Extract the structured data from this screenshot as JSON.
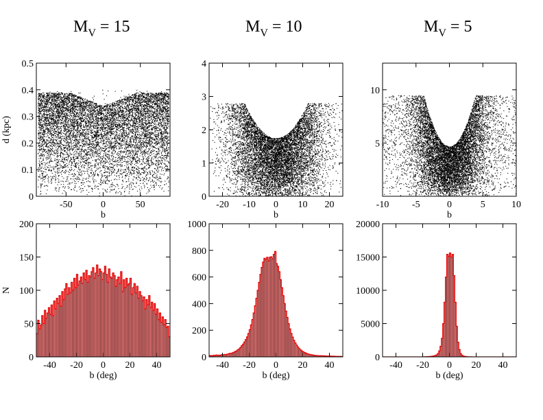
{
  "figure": {
    "panel_titles": [
      {
        "main": "M",
        "sub": "V",
        "rest": " = 15"
      },
      {
        "main": "M",
        "sub": "V",
        "rest": " = 10"
      },
      {
        "main": "M",
        "sub": "V",
        "rest": " = 5"
      }
    ],
    "colors": {
      "hist_fill": "#ff8080",
      "hist_stroke": "#e00000",
      "points": "#000000"
    }
  },
  "chart_data": [
    {
      "type": "scatter",
      "panel": "top-left",
      "xlabel": "b",
      "ylabel": "d (kpc)",
      "xlim": [
        -90,
        90
      ],
      "ylim": [
        0,
        0.5
      ],
      "xticks": [
        -50,
        0,
        50
      ],
      "yticks": [
        0,
        0.1,
        0.2,
        0.3,
        0.4,
        0.5
      ],
      "shape": {
        "distance_limit_kpc": 0.4,
        "gap_min_center_kpc": 0.34,
        "gap_edge_kpc": 0.39,
        "gap_width_deg": 45
      },
      "n_points": 9000
    },
    {
      "type": "scatter",
      "panel": "top-center",
      "xlabel": "b",
      "ylabel": "",
      "xlim": [
        -25,
        25
      ],
      "ylim": [
        0,
        4
      ],
      "xticks": [
        -20,
        -10,
        0,
        10,
        20
      ],
      "yticks": [
        0,
        1,
        2,
        3,
        4
      ],
      "shape": {
        "distance_limit_kpc": 2.8,
        "gap_min_center_kpc": 1.75,
        "gap_curvature": 0.0075
      },
      "n_points": 8500
    },
    {
      "type": "scatter",
      "panel": "top-right",
      "xlabel": "b",
      "ylabel": "",
      "xlim": [
        -10,
        10
      ],
      "ylim": [
        0,
        12.5
      ],
      "xticks": [
        -10,
        -5,
        0,
        5,
        10
      ],
      "yticks": [
        5,
        10
      ],
      "shape": {
        "distance_limit_kpc": 9.5,
        "gap_min_center_kpc": 4.7,
        "gap_curvature": 0.32
      },
      "n_points": 9000
    },
    {
      "type": "bar",
      "panel": "bottom-left",
      "xlabel": "b (deg)",
      "ylabel": "N",
      "xlim": [
        -50,
        50
      ],
      "ylim": [
        0,
        200
      ],
      "xticks": [
        -40,
        -20,
        0,
        20,
        40
      ],
      "yticks": [
        0,
        50,
        100,
        150,
        200
      ],
      "bin_width": 1,
      "x": [
        -50,
        -49,
        -48,
        -47,
        -46,
        -45,
        -44,
        -43,
        -42,
        -41,
        -40,
        -39,
        -38,
        -37,
        -36,
        -35,
        -34,
        -33,
        -32,
        -31,
        -30,
        -29,
        -28,
        -27,
        -26,
        -25,
        -24,
        -23,
        -22,
        -21,
        -20,
        -19,
        -18,
        -17,
        -16,
        -15,
        -14,
        -13,
        -12,
        -11,
        -10,
        -9,
        -8,
        -7,
        -6,
        -5,
        -4,
        -3,
        -2,
        -1,
        0,
        1,
        2,
        3,
        4,
        5,
        6,
        7,
        8,
        9,
        10,
        11,
        12,
        13,
        14,
        15,
        16,
        17,
        18,
        19,
        20,
        21,
        22,
        23,
        24,
        25,
        26,
        27,
        28,
        29,
        30,
        31,
        32,
        33,
        34,
        35,
        36,
        37,
        38,
        39,
        40,
        41,
        42,
        43,
        44,
        45,
        46,
        47,
        48,
        49
      ],
      "values": [
        35,
        55,
        42,
        48,
        62,
        50,
        70,
        58,
        66,
        74,
        64,
        78,
        62,
        84,
        72,
        88,
        80,
        92,
        76,
        98,
        86,
        102,
        110,
        94,
        104,
        96,
        112,
        100,
        118,
        104,
        124,
        108,
        114,
        120,
        110,
        126,
        116,
        130,
        112,
        122,
        120,
        128,
        134,
        118,
        126,
        138,
        122,
        132,
        128,
        116,
        126,
        136,
        124,
        112,
        132,
        120,
        118,
        126,
        122,
        106,
        116,
        120,
        110,
        128,
        98,
        116,
        104,
        118,
        108,
        110,
        118,
        94,
        104,
        110,
        96,
        106,
        88,
        98,
        92,
        84,
        90,
        72,
        86,
        78,
        92,
        74,
        82,
        70,
        80,
        64,
        72,
        56,
        66,
        52,
        60,
        48,
        56,
        44,
        46,
        30
      ]
    },
    {
      "type": "bar",
      "panel": "bottom-center",
      "xlabel": "b (deg)",
      "ylabel": "",
      "xlim": [
        -50,
        50
      ],
      "ylim": [
        0,
        1000
      ],
      "xticks": [
        -40,
        -20,
        0,
        20,
        40
      ],
      "yticks": [
        0,
        200,
        400,
        600,
        800,
        1000
      ],
      "bin_width": 1,
      "x": [
        -50,
        -49,
        -48,
        -47,
        -46,
        -45,
        -44,
        -43,
        -42,
        -41,
        -40,
        -39,
        -38,
        -37,
        -36,
        -35,
        -34,
        -33,
        -32,
        -31,
        -30,
        -29,
        -28,
        -27,
        -26,
        -25,
        -24,
        -23,
        -22,
        -21,
        -20,
        -19,
        -18,
        -17,
        -16,
        -15,
        -14,
        -13,
        -12,
        -11,
        -10,
        -9,
        -8,
        -7,
        -6,
        -5,
        -4,
        -3,
        -2,
        -1,
        0,
        1,
        2,
        3,
        4,
        5,
        6,
        7,
        8,
        9,
        10,
        11,
        12,
        13,
        14,
        15,
        16,
        17,
        18,
        19,
        20,
        21,
        22,
        23,
        24,
        25,
        26,
        27,
        28,
        29,
        30,
        31,
        32,
        33,
        34,
        35,
        36,
        37,
        38,
        39,
        40,
        41,
        42,
        43,
        44,
        45,
        46,
        47,
        48,
        49
      ],
      "values": [
        8,
        10,
        6,
        12,
        9,
        14,
        11,
        13,
        12,
        16,
        14,
        18,
        16,
        20,
        22,
        26,
        24,
        30,
        34,
        40,
        44,
        52,
        60,
        70,
        84,
        96,
        112,
        130,
        150,
        176,
        204,
        240,
        280,
        330,
        384,
        440,
        500,
        560,
        620,
        672,
        712,
        740,
        732,
        748,
        720,
        748,
        752,
        736,
        770,
        792,
        700,
        680,
        640,
        580,
        520,
        460,
        400,
        344,
        296,
        250,
        210,
        176,
        148,
        124,
        104,
        88,
        74,
        62,
        52,
        44,
        38,
        32,
        28,
        24,
        20,
        18,
        16,
        14,
        12,
        11,
        10,
        9,
        8,
        9,
        7,
        8,
        6,
        7,
        5,
        6,
        5,
        6,
        4,
        5,
        4,
        3,
        4,
        3,
        4,
        2
      ]
    },
    {
      "type": "bar",
      "panel": "bottom-right",
      "xlabel": "b (deg)",
      "ylabel": "",
      "xlim": [
        -50,
        50
      ],
      "ylim": [
        0,
        20000
      ],
      "xticks": [
        -40,
        -20,
        0,
        20,
        40
      ],
      "yticks": [
        0,
        5000,
        10000,
        15000,
        20000
      ],
      "bin_width": 1,
      "x": [
        -50,
        -49,
        -48,
        -47,
        -46,
        -45,
        -44,
        -43,
        -42,
        -41,
        -40,
        -39,
        -38,
        -37,
        -36,
        -35,
        -34,
        -33,
        -32,
        -31,
        -30,
        -29,
        -28,
        -27,
        -26,
        -25,
        -24,
        -23,
        -22,
        -21,
        -20,
        -19,
        -18,
        -17,
        -16,
        -15,
        -14,
        -13,
        -12,
        -11,
        -10,
        -9,
        -8,
        -7,
        -6,
        -5,
        -4,
        -3,
        -2,
        -1,
        0,
        1,
        2,
        3,
        4,
        5,
        6,
        7,
        8,
        9,
        10,
        11,
        12,
        13,
        14,
        15,
        16,
        17,
        18,
        19,
        20,
        21,
        22,
        23,
        24,
        25,
        26,
        27,
        28,
        29,
        30,
        31,
        32,
        33,
        34,
        35,
        36,
        37,
        38,
        39,
        40,
        41,
        42,
        43,
        44,
        45,
        46,
        47,
        48,
        49
      ],
      "values": [
        0,
        0,
        0,
        0,
        0,
        0,
        0,
        0,
        0,
        0,
        0,
        0,
        0,
        0,
        0,
        0,
        0,
        0,
        0,
        0,
        0,
        0,
        0,
        0,
        0,
        0,
        0,
        0,
        0,
        0,
        10,
        15,
        20,
        30,
        40,
        60,
        80,
        100,
        140,
        200,
        300,
        500,
        900,
        1600,
        2800,
        5000,
        8200,
        12000,
        15400,
        15100,
        15600,
        15000,
        15400,
        12200,
        8200,
        4600,
        2200,
        1100,
        500,
        250,
        120,
        70,
        40,
        25,
        15,
        10,
        5,
        0,
        0,
        0,
        0,
        0,
        0,
        0,
        0,
        0,
        0,
        0,
        0,
        0,
        0,
        0,
        0,
        0,
        0,
        0,
        0,
        0,
        0,
        0,
        0,
        0,
        0,
        0,
        0,
        0,
        0,
        0,
        0,
        0
      ]
    }
  ]
}
